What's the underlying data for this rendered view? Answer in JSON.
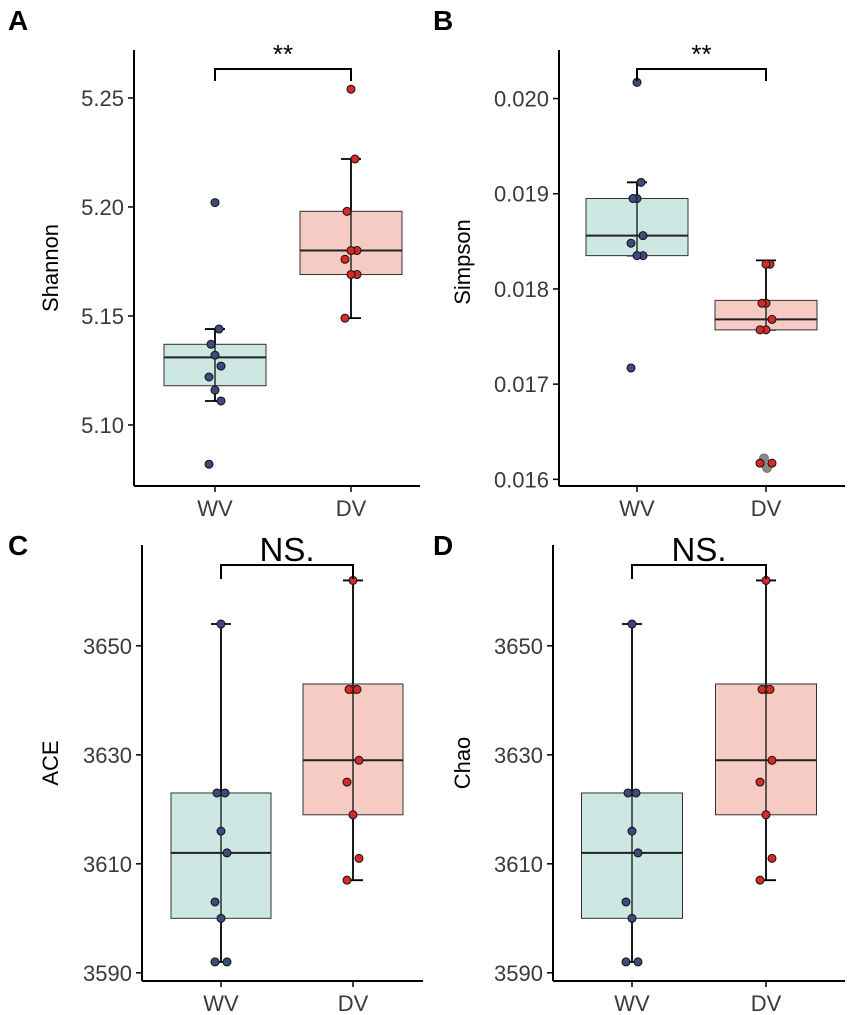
{
  "colors": {
    "wv_fill": "#cde8e3",
    "dv_fill": "#f5cbc3",
    "wv_point": "#3d4a7e",
    "dv_point": "#d62a28",
    "outlier_point": "#8a8a8a",
    "axis": "#000000"
  },
  "chart_data": [
    {
      "panel": "A",
      "type": "box",
      "ylabel": "Shannon",
      "categories": [
        "WV",
        "DV"
      ],
      "ylim": [
        5.072,
        5.272
      ],
      "yticks": [
        5.1,
        5.15,
        5.2,
        5.25
      ],
      "ytick_labels": [
        "5.10",
        "5.15",
        "5.20",
        "5.25"
      ],
      "significance": "**",
      "groups": [
        {
          "name": "WV",
          "min": 5.111,
          "q1": 5.118,
          "median": 5.131,
          "q3": 5.137,
          "max": 5.144,
          "points": [
            5.082,
            5.111,
            5.116,
            5.122,
            5.127,
            5.132,
            5.137,
            5.144,
            5.202
          ]
        },
        {
          "name": "DV",
          "min": 5.149,
          "q1": 5.169,
          "median": 5.18,
          "q3": 5.198,
          "max": 5.222,
          "points": [
            5.149,
            5.169,
            5.169,
            5.176,
            5.18,
            5.18,
            5.198,
            5.222,
            5.254
          ]
        }
      ]
    },
    {
      "panel": "B",
      "type": "box",
      "ylabel": "Simpson",
      "categories": [
        "WV",
        "DV"
      ],
      "ylim": [
        0.01593,
        0.02051
      ],
      "yticks": [
        0.016,
        0.017,
        0.018,
        0.019,
        0.02
      ],
      "ytick_labels": [
        "0.016",
        "0.017",
        "0.018",
        "0.019",
        "0.020"
      ],
      "significance": "**",
      "groups": [
        {
          "name": "WV",
          "min": 0.01835,
          "q1": 0.01835,
          "median": 0.01856,
          "q3": 0.01895,
          "max": 0.01912,
          "points": [
            0.01717,
            0.01835,
            0.01835,
            0.01848,
            0.01856,
            0.01895,
            0.01895,
            0.01912,
            0.02017
          ]
        },
        {
          "name": "DV",
          "min": 0.01757,
          "q1": 0.01757,
          "median": 0.01768,
          "q3": 0.01788,
          "max": 0.0183,
          "points": [
            0.01617,
            0.01617,
            0.01757,
            0.01757,
            0.01768,
            0.01785,
            0.01785,
            0.01826,
            0.01826
          ],
          "outliers": [
            0.01622,
            0.01612
          ]
        }
      ]
    },
    {
      "panel": "C",
      "type": "box",
      "ylabel": "ACE",
      "categories": [
        "WV",
        "DV"
      ],
      "ylim": [
        3588.5,
        3668.5
      ],
      "yticks": [
        3590,
        3610,
        3630,
        3650
      ],
      "ytick_labels": [
        "3590",
        "3610",
        "3630",
        "3650"
      ],
      "significance": "NS.",
      "groups": [
        {
          "name": "WV",
          "min": 3592,
          "q1": 3600,
          "median": 3612,
          "q3": 3623,
          "max": 3654,
          "points": [
            3592,
            3592,
            3600,
            3603,
            3612,
            3616,
            3623,
            3623,
            3654
          ]
        },
        {
          "name": "DV",
          "min": 3607,
          "q1": 3619,
          "median": 3629,
          "q3": 3643,
          "max": 3662,
          "points": [
            3607,
            3611,
            3619,
            3625,
            3629,
            3642,
            3642,
            3642,
            3662
          ]
        }
      ]
    },
    {
      "panel": "D",
      "type": "box",
      "ylabel": "Chao",
      "categories": [
        "WV",
        "DV"
      ],
      "ylim": [
        3588.5,
        3668.5
      ],
      "yticks": [
        3590,
        3610,
        3630,
        3650
      ],
      "ytick_labels": [
        "3590",
        "3610",
        "3630",
        "3650"
      ],
      "significance": "NS.",
      "groups": [
        {
          "name": "WV",
          "min": 3592,
          "q1": 3600,
          "median": 3612,
          "q3": 3623,
          "max": 3654,
          "points": [
            3592,
            3592,
            3600,
            3603,
            3612,
            3616,
            3623,
            3623,
            3654
          ]
        },
        {
          "name": "DV",
          "min": 3607,
          "q1": 3619,
          "median": 3629,
          "q3": 3643,
          "max": 3662,
          "points": [
            3607,
            3611,
            3619,
            3625,
            3629,
            3642,
            3642,
            3642,
            3662
          ]
        }
      ]
    }
  ]
}
